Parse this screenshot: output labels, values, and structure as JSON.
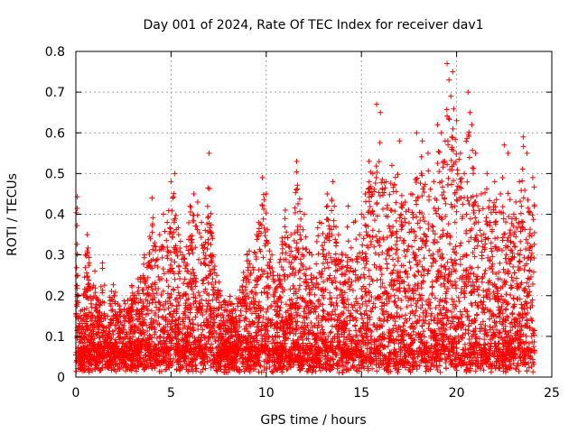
{
  "chart_data": {
    "type": "scatter",
    "title": "Day 001 of 2024, Rate Of TEC Index for receiver dav1",
    "xlabel": "GPS time / hours",
    "ylabel": "ROTI / TECUs",
    "xlim": [
      0,
      25
    ],
    "ylim": [
      0,
      0.8
    ],
    "xticks": [
      0,
      5,
      10,
      15,
      20,
      25
    ],
    "yticks": [
      0,
      0.1,
      0.2,
      0.3,
      0.4,
      0.5,
      0.6,
      0.7,
      0.8
    ],
    "xtick_labels": [
      "0",
      "5",
      "10",
      "15",
      "20",
      "25"
    ],
    "ytick_labels": [
      "0",
      "0.1",
      "0.2",
      "0.3",
      "0.4",
      "0.5",
      "0.6",
      "0.7",
      "0.8"
    ],
    "grid": true,
    "marker": "+",
    "color": "#ff0000",
    "series": [
      {
        "name": "ROTI",
        "x": [
          0.1,
          0.2,
          0.3,
          0.4,
          0.5,
          0.6,
          0.7,
          0.8,
          0.9,
          1.0,
          1.2,
          1.4,
          1.6,
          1.8,
          2.0,
          2.3,
          2.6,
          3.0,
          3.3,
          3.6,
          3.8,
          4.0,
          4.2,
          4.4,
          4.6,
          4.8,
          5.0,
          5.2,
          5.4,
          5.6,
          5.8,
          6.0,
          6.2,
          6.4,
          6.6,
          6.8,
          7.0,
          7.2,
          7.4,
          7.6,
          8.0,
          8.5,
          9.0,
          9.5,
          9.8,
          10.0,
          10.3,
          10.6,
          11.0,
          11.3,
          11.6,
          12.0,
          12.4,
          12.8,
          13.2,
          13.5,
          13.8,
          14.0,
          14.3,
          14.6,
          15.0,
          15.2,
          15.4,
          15.6,
          15.8,
          16.0,
          16.3,
          16.6,
          17.0,
          17.3,
          17.6,
          17.9,
          18.2,
          18.5,
          18.8,
          19.0,
          19.2,
          19.4,
          19.5,
          19.6,
          19.7,
          19.8,
          20.0,
          20.2,
          20.4,
          20.6,
          20.7,
          20.8,
          21.0,
          21.3,
          21.6,
          22.0,
          22.3,
          22.5,
          22.7,
          23.0,
          23.3,
          23.5,
          23.7,
          24.0
        ],
        "y": [
          0.25,
          0.15,
          0.12,
          0.2,
          0.3,
          0.35,
          0.28,
          0.18,
          0.22,
          0.26,
          0.15,
          0.28,
          0.12,
          0.18,
          0.2,
          0.16,
          0.18,
          0.2,
          0.22,
          0.3,
          0.28,
          0.44,
          0.32,
          0.35,
          0.4,
          0.38,
          0.48,
          0.5,
          0.35,
          0.3,
          0.32,
          0.42,
          0.45,
          0.43,
          0.38,
          0.36,
          0.55,
          0.3,
          0.25,
          0.2,
          0.15,
          0.18,
          0.3,
          0.35,
          0.49,
          0.45,
          0.3,
          0.25,
          0.41,
          0.35,
          0.53,
          0.4,
          0.3,
          0.38,
          0.45,
          0.48,
          0.35,
          0.3,
          0.42,
          0.38,
          0.4,
          0.45,
          0.53,
          0.5,
          0.67,
          0.65,
          0.48,
          0.52,
          0.58,
          0.43,
          0.45,
          0.6,
          0.58,
          0.55,
          0.48,
          0.62,
          0.6,
          0.58,
          0.77,
          0.73,
          0.69,
          0.75,
          0.63,
          0.55,
          0.5,
          0.7,
          0.65,
          0.62,
          0.55,
          0.45,
          0.5,
          0.48,
          0.45,
          0.57,
          0.55,
          0.4,
          0.48,
          0.59,
          0.55,
          0.49
        ]
      }
    ],
    "density_points": 6000
  }
}
